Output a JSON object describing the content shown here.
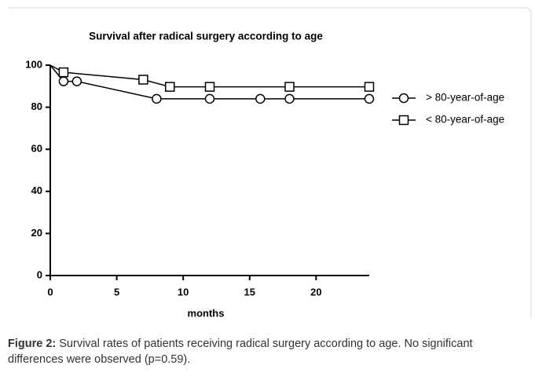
{
  "chart_data": {
    "type": "line",
    "title": "Survival after radical surgery according to age",
    "x_label": "months",
    "xlim": [
      0,
      24
    ],
    "xticks": [
      0,
      5,
      10,
      15,
      20
    ],
    "ylim": [
      0,
      100
    ],
    "yticks": [
      0,
      20,
      40,
      60,
      80,
      100
    ],
    "series": [
      {
        "name": "> 80-year-of-age",
        "marker": "circle",
        "color": "#000000",
        "x": [
          0,
          1,
          2,
          8,
          12,
          15.8,
          18,
          24
        ],
        "values": [
          100,
          92.3,
          92.3,
          84,
          84,
          84,
          84,
          84
        ]
      },
      {
        "name": "< 80-year-of-age",
        "marker": "square",
        "color": "#000000",
        "x": [
          0,
          1,
          7,
          9,
          12,
          18,
          24
        ],
        "values": [
          100,
          96.6,
          93.1,
          89.7,
          89.7,
          89.7,
          89.7
        ]
      }
    ]
  },
  "caption": {
    "label": "Figure 2:",
    "text": " Survival rates of patients receiving radical surgery according to age. No significant differences were observed (p=0.59)."
  }
}
